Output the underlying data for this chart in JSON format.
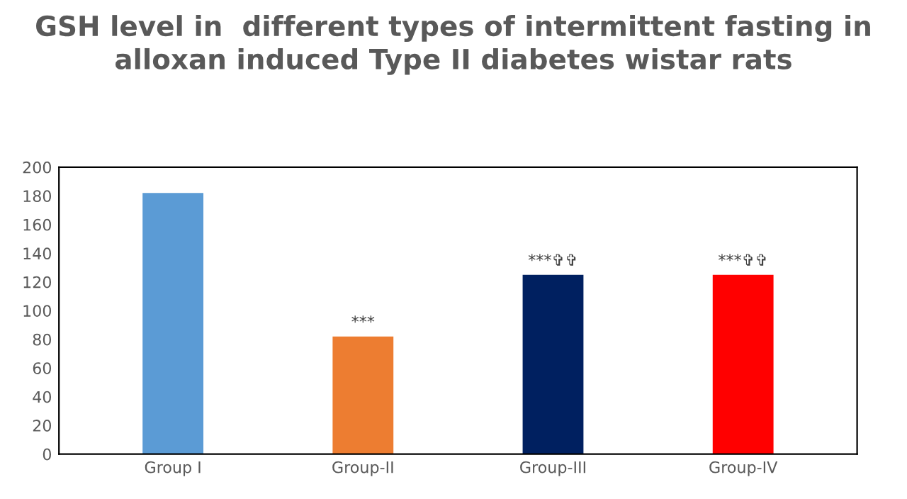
{
  "chart_data": {
    "type": "bar",
    "title": "GSH level in  different types of intermittent fasting in alloxan induced Type II diabetes wistar rats",
    "categories": [
      "Group I",
      "Group-II",
      "Group-III",
      "Group-IV"
    ],
    "values": [
      182,
      82,
      125,
      125
    ],
    "colors": [
      "#5b9bd5",
      "#ed7d31",
      "#002060",
      "#ff0000"
    ],
    "ylim": [
      0,
      200
    ],
    "yticks": [
      0,
      20,
      40,
      60,
      80,
      100,
      120,
      140,
      160,
      180,
      200
    ],
    "grid": false,
    "annotations": [
      {
        "text": "***",
        "x": "Group-II",
        "y": 82
      },
      {
        "text": "***✞✞",
        "x": "Group-III",
        "y": 125
      },
      {
        "text": "***✞✞",
        "x": "Group-IV",
        "y": 125
      }
    ]
  }
}
